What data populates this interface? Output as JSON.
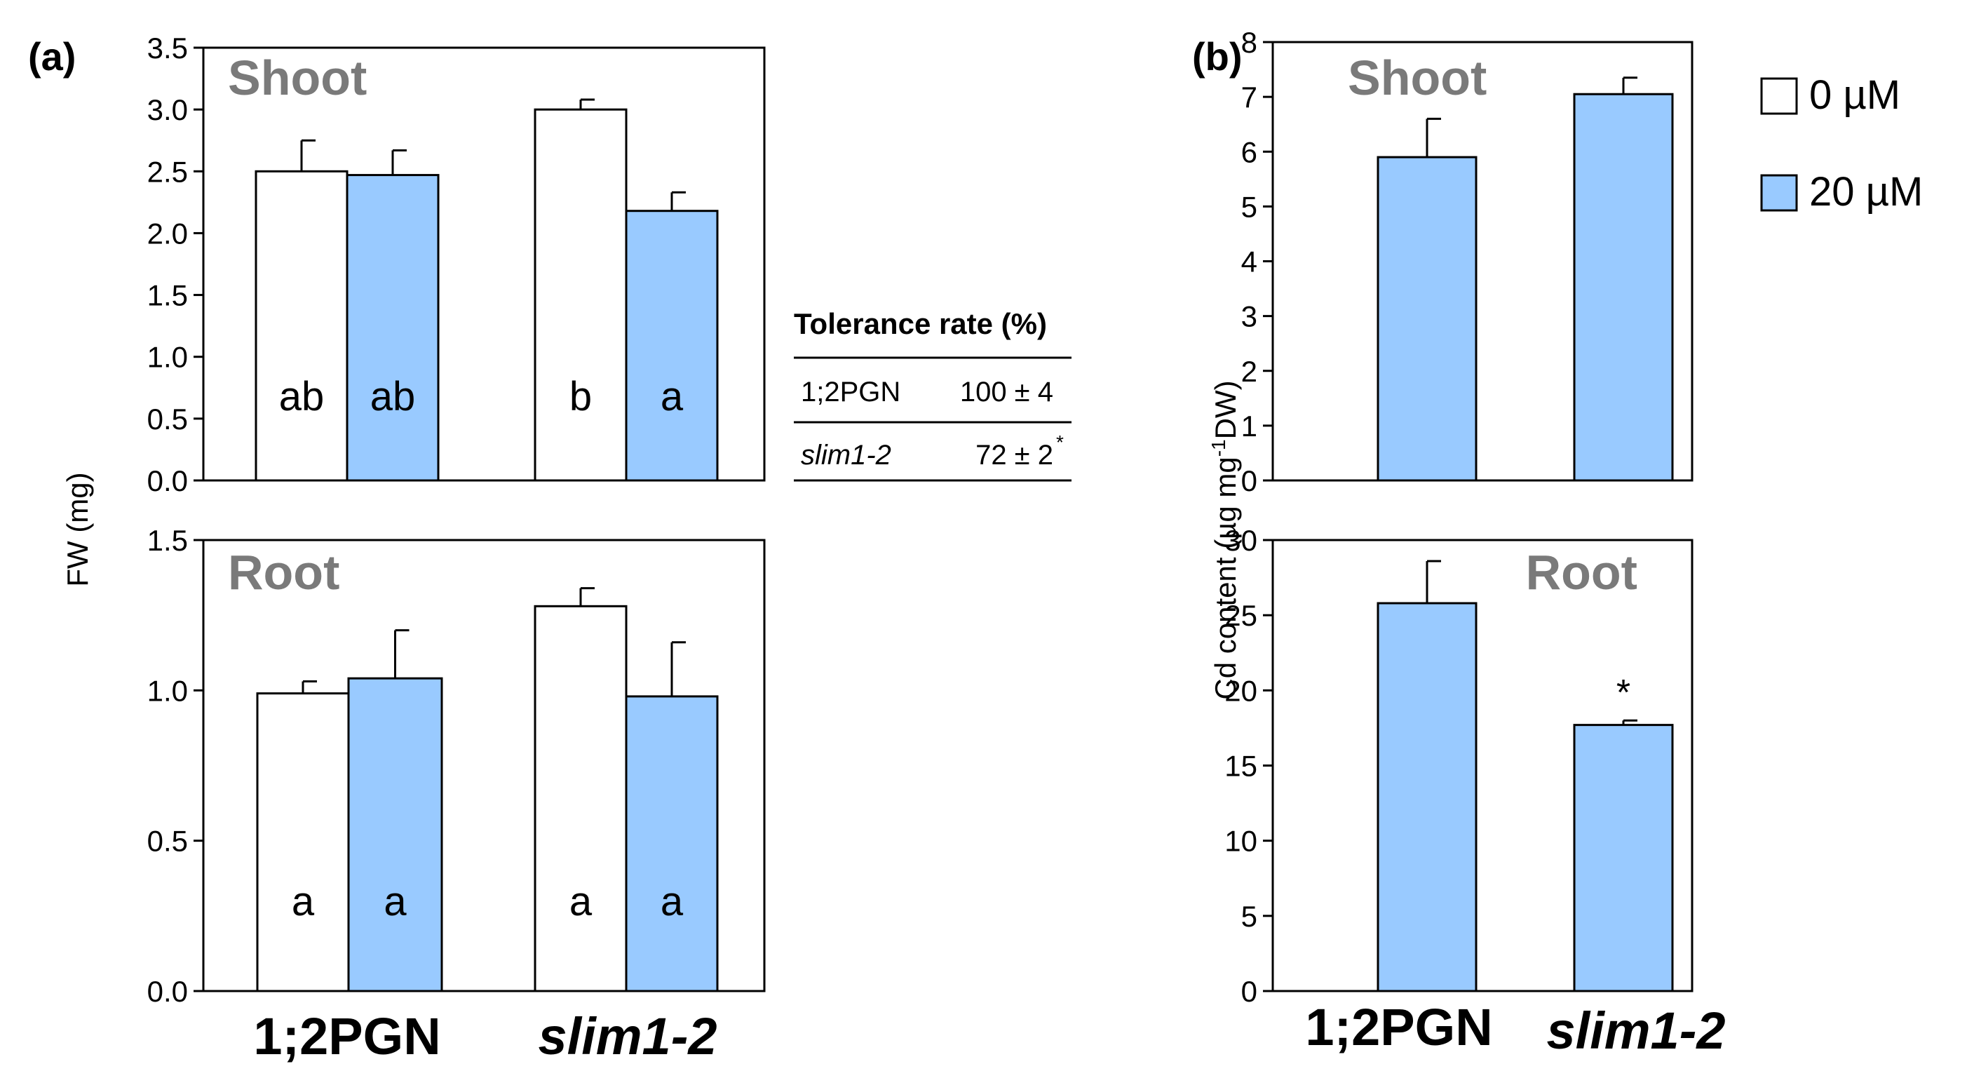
{
  "colors": {
    "c0": "#ffffff",
    "c20": "#99caff",
    "edge": "#000000",
    "title": "#7a7a7a"
  },
  "panels": [
    {
      "id": "a",
      "label": "(a)"
    },
    {
      "id": "b",
      "label": "(b)"
    }
  ],
  "legend": [
    {
      "label": "0 µM",
      "color": "#ffffff"
    },
    {
      "label": "20 µM",
      "color": "#99caff"
    }
  ],
  "table": {
    "title": "Tolerance rate (%)",
    "rows": [
      {
        "name": "1;2PGN",
        "value": "100 ± 4",
        "sup": ""
      },
      {
        "name": "slim1-2",
        "value": "72 ± 2",
        "sup": "*"
      }
    ]
  },
  "chart_data": [
    {
      "id": "a-shoot",
      "type": "bar",
      "title": "Shoot",
      "ylabel": "FW (mg)",
      "ylim": [
        0,
        3.5
      ],
      "ticks": [
        "0.0",
        "0.5",
        "1.0",
        "1.5",
        "2.0",
        "2.5",
        "3.0",
        "3.5"
      ],
      "categories": [
        "1;2PGN",
        "slim1-2"
      ],
      "series": [
        {
          "name": "0 µM",
          "values": [
            2.5,
            3.0
          ],
          "errors": [
            0.25,
            0.08
          ],
          "letters": [
            "ab",
            "b"
          ]
        },
        {
          "name": "20 µM",
          "values": [
            2.47,
            2.18
          ],
          "errors": [
            0.2,
            0.15
          ],
          "letters": [
            "ab",
            "a"
          ]
        }
      ]
    },
    {
      "id": "a-root",
      "type": "bar",
      "title": "Root",
      "ylim": [
        0,
        1.5
      ],
      "ticks": [
        "0.0",
        "0.5",
        "1.0",
        "1.5"
      ],
      "categories": [
        "1;2PGN",
        "slim1-2"
      ],
      "series": [
        {
          "name": "0 µM",
          "values": [
            0.99,
            1.28
          ],
          "errors": [
            0.04,
            0.06
          ],
          "letters": [
            "a",
            "a"
          ]
        },
        {
          "name": "20 µM",
          "values": [
            1.04,
            0.98
          ],
          "errors": [
            0.16,
            0.18
          ],
          "letters": [
            "a",
            "a"
          ]
        }
      ]
    },
    {
      "id": "b-shoot",
      "type": "bar",
      "title": "Shoot",
      "ylabel": "Cd content (µg mg-1DW)",
      "ylim": [
        0,
        8
      ],
      "ticks": [
        "0",
        "1",
        "2",
        "3",
        "4",
        "5",
        "6",
        "7",
        "8"
      ],
      "categories": [
        "1;2PGN",
        "slim1-2"
      ],
      "series": [
        {
          "name": "20 µM",
          "values": [
            5.9,
            7.05
          ],
          "errors": [
            0.7,
            0.3
          ],
          "marks": [
            "",
            ""
          ]
        }
      ]
    },
    {
      "id": "b-root",
      "type": "bar",
      "title": "Root",
      "ylim": [
        0,
        30
      ],
      "ticks": [
        "0",
        "5",
        "10",
        "15",
        "20",
        "25",
        "30"
      ],
      "categories": [
        "1;2PGN",
        "slim1-2"
      ],
      "series": [
        {
          "name": "20 µM",
          "values": [
            25.8,
            17.7
          ],
          "errors": [
            2.8,
            0.3
          ],
          "marks": [
            "",
            "*"
          ]
        }
      ]
    }
  ]
}
